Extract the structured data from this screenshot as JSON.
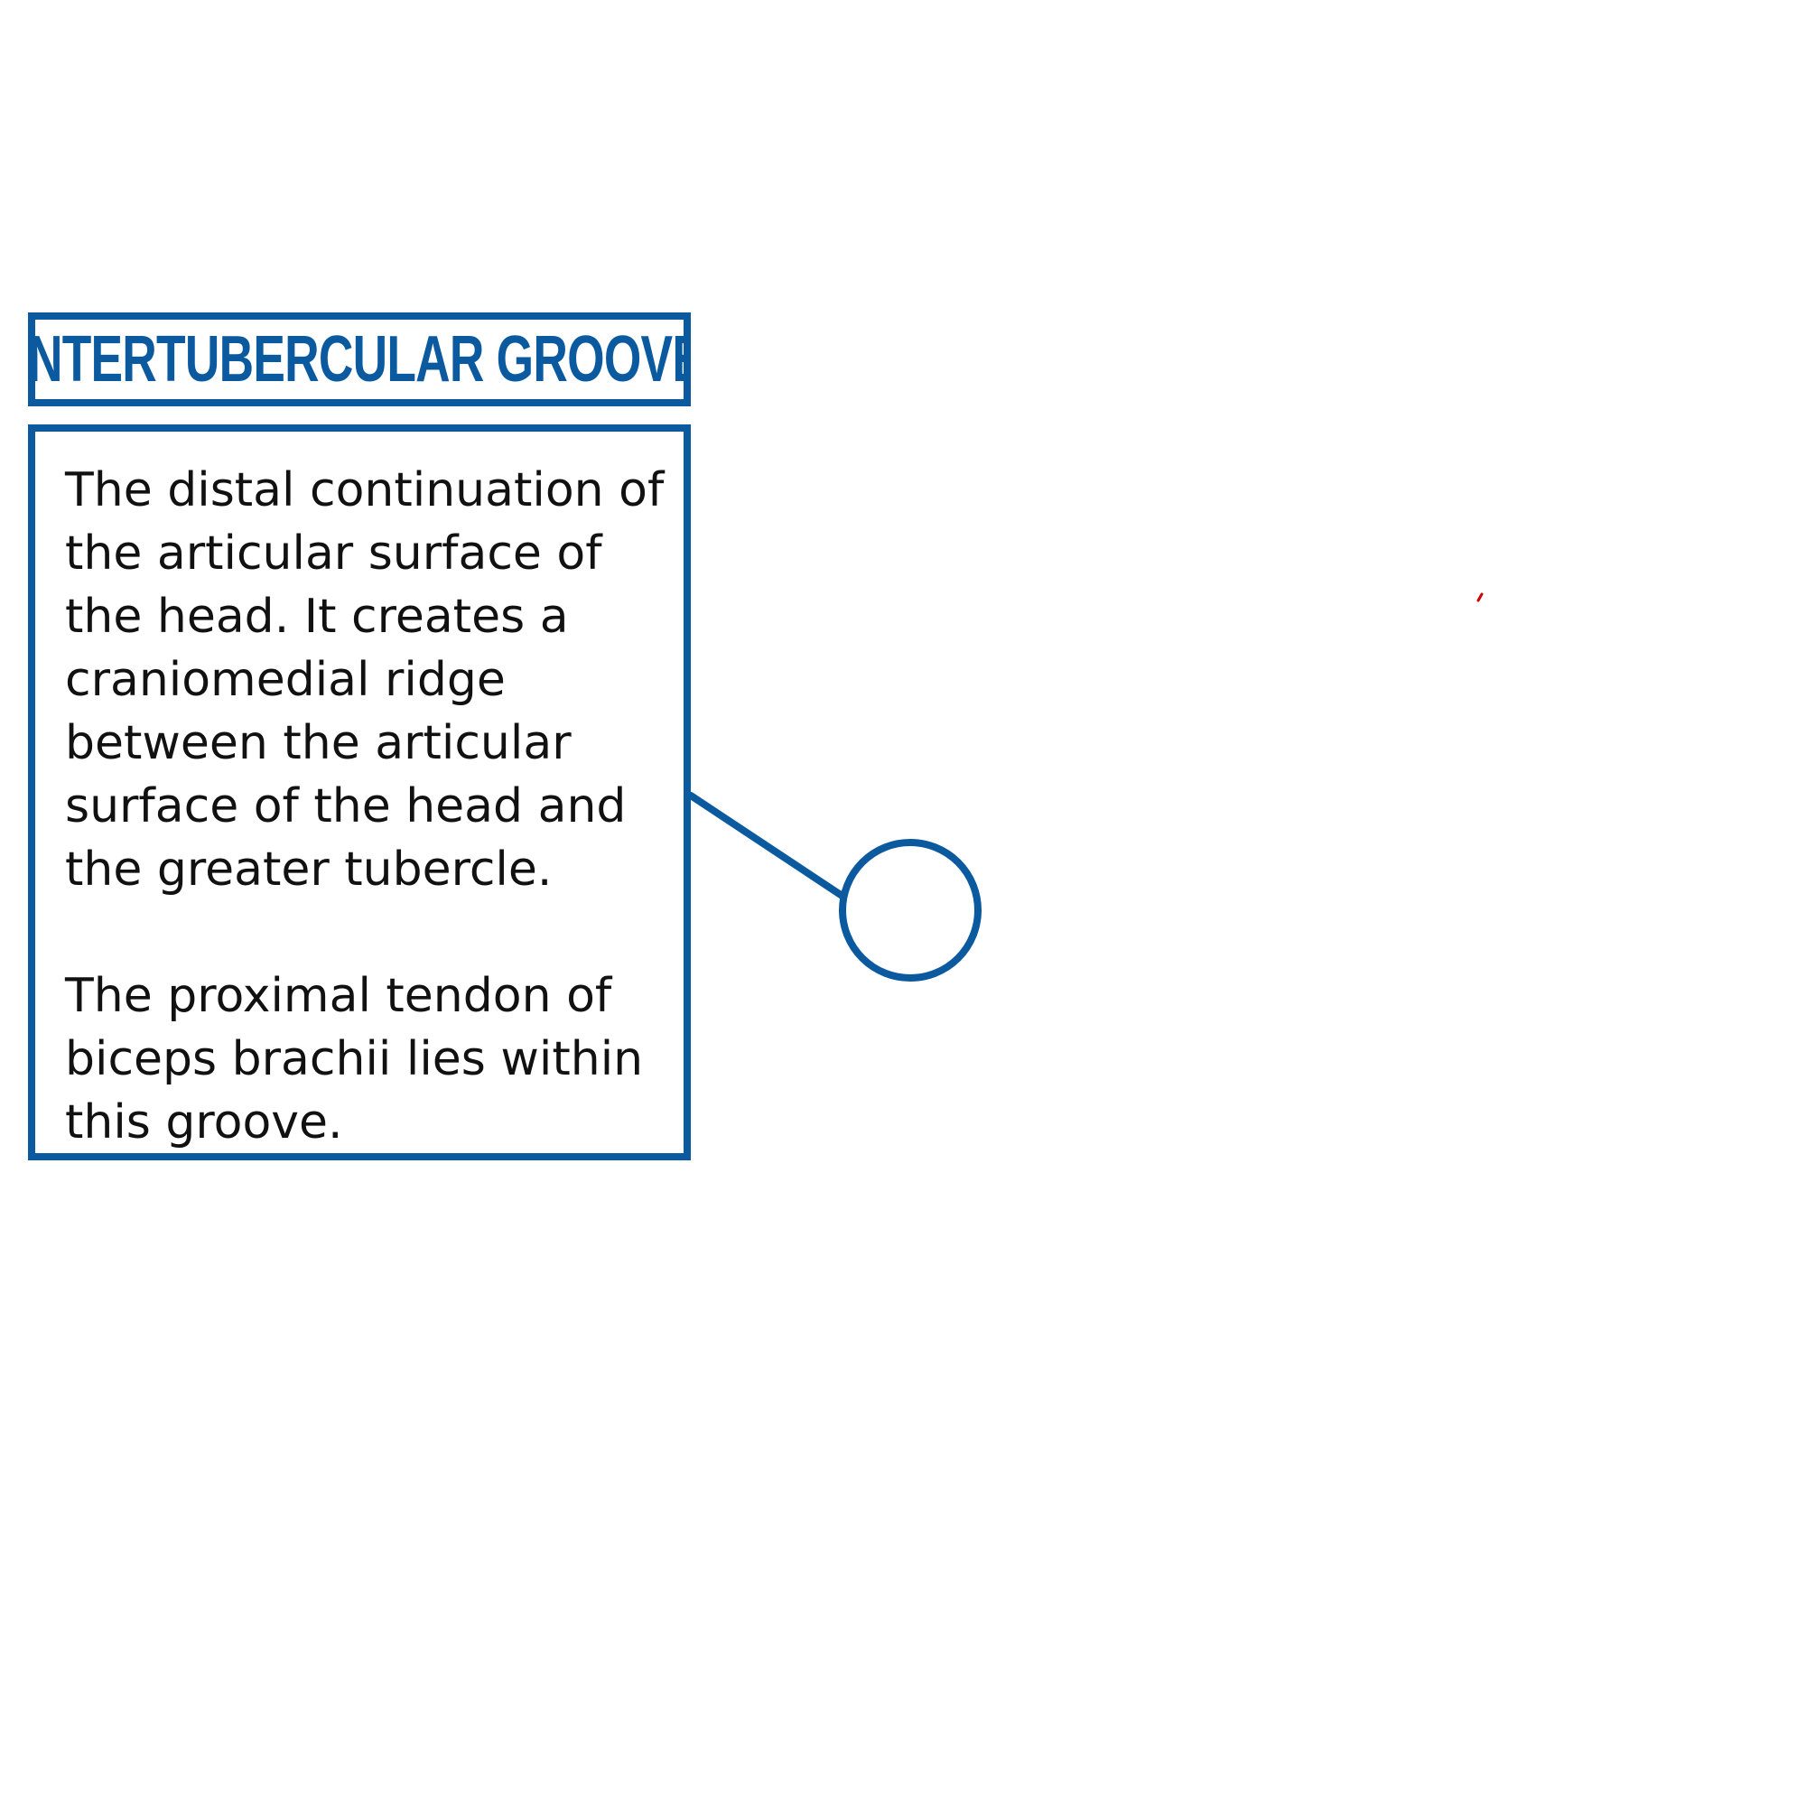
{
  "label": {
    "title": "INTERTUBERCULAR GROOVE",
    "paragraphs": [
      "The distal continuation of the articular surface of the head. It creates a craniomedial ridge between the articular surface of the head and the greater tubercle.",
      "The proximal tendon of biceps brachii lies within this groove."
    ]
  },
  "colors": {
    "accent": "#0b5aa0",
    "text": "#111111",
    "mark": "#cc0000",
    "background": "#ffffff"
  }
}
